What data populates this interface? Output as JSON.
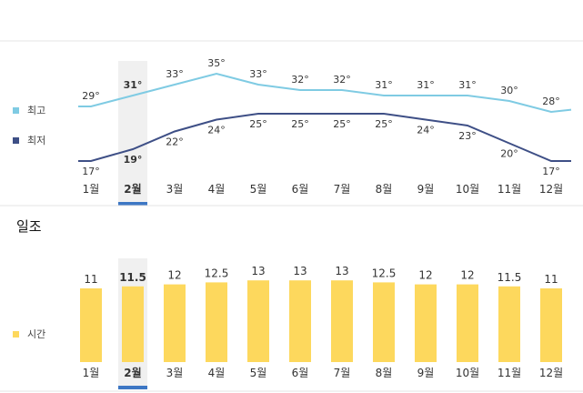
{
  "sunshine": {
    "title": "일조"
  },
  "chart_data": [
    {
      "type": "line",
      "categories": [
        "1월",
        "2월",
        "3월",
        "4월",
        "5월",
        "6월",
        "7월",
        "8월",
        "9월",
        "10월",
        "11월",
        "12월"
      ],
      "highlighted_category": "2월",
      "series": [
        {
          "name": "최고",
          "color": "#7fcbe3",
          "values": [
            29,
            31,
            33,
            35,
            33,
            32,
            32,
            31,
            31,
            31,
            30,
            28
          ],
          "labels": [
            "29°",
            "31°",
            "33°",
            "35°",
            "33°",
            "32°",
            "32°",
            "31°",
            "31°",
            "31°",
            "30°",
            "28°"
          ]
        },
        {
          "name": "최저",
          "color": "#3e4f86",
          "values": [
            17,
            19,
            22,
            24,
            25,
            25,
            25,
            25,
            24,
            23,
            20,
            17
          ],
          "labels": [
            "17°",
            "19°",
            "22°",
            "24°",
            "25°",
            "25°",
            "25°",
            "25°",
            "24°",
            "23°",
            "20°",
            "17°"
          ]
        }
      ],
      "legend": "left"
    },
    {
      "type": "bar",
      "categories": [
        "1월",
        "2월",
        "3월",
        "4월",
        "5월",
        "6월",
        "7월",
        "8월",
        "9월",
        "10월",
        "11월",
        "12월"
      ],
      "highlighted_category": "2월",
      "series": [
        {
          "name": "시간",
          "color": "#fdd85d",
          "values": [
            11,
            11.5,
            12,
            12.5,
            13,
            13,
            13,
            12.5,
            12,
            12,
            11.5,
            11
          ],
          "labels": [
            "11",
            "11.5",
            "12",
            "12.5",
            "13",
            "13",
            "13",
            "12.5",
            "12",
            "12",
            "11.5",
            "11"
          ]
        }
      ],
      "legend": "left"
    }
  ]
}
